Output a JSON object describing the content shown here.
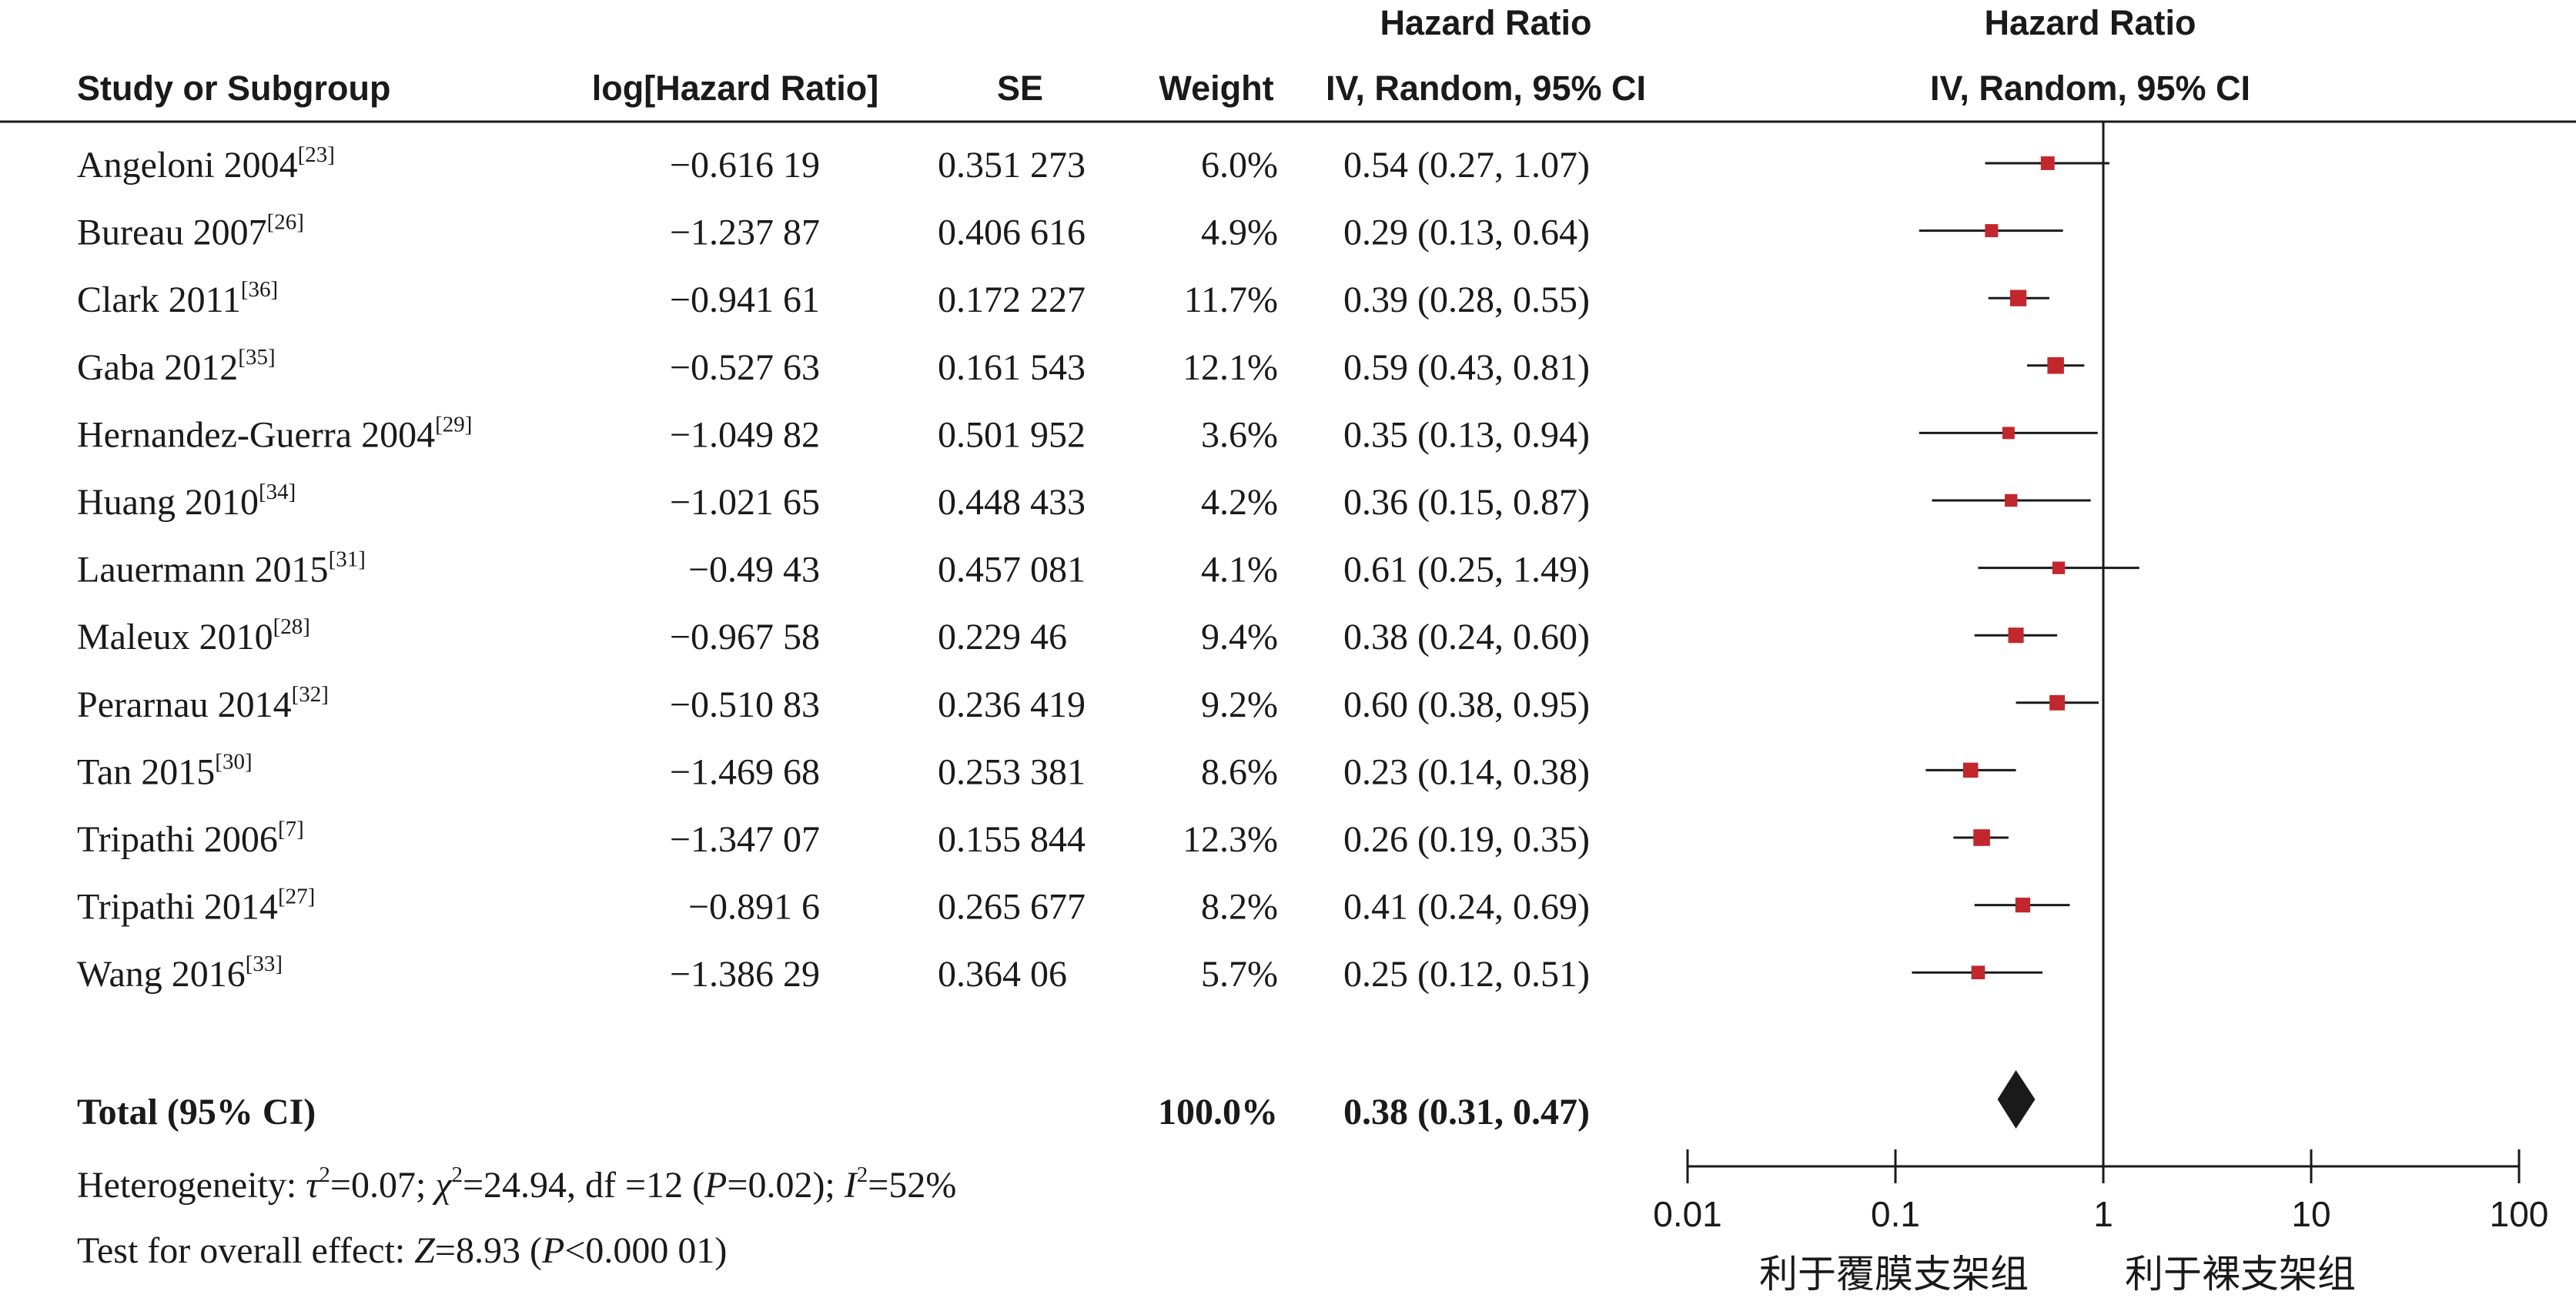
{
  "chart_data": {
    "type": "forest",
    "scale": "log",
    "xlim": [
      0.01,
      100
    ],
    "null_value": 1,
    "x_ticks": [
      "0.01",
      "0.1",
      "1",
      "10",
      "100"
    ],
    "headers": {
      "study": "Study or Subgroup",
      "loghr": "log[Hazard Ratio]",
      "se": "SE",
      "weight": "Weight",
      "hr_title": "Hazard Ratio",
      "hr_method": "IV, Random, 95% CI",
      "plot_title": "Hazard Ratio",
      "plot_method": "IV, Random, 95% CI"
    },
    "studies": [
      {
        "name": "Angeloni 2004",
        "ref": "[23]",
        "loghr": "−0.616 19",
        "se": "0.351 273",
        "weight": "6.0%",
        "ci_text": "0.54 (0.27, 1.07)",
        "hr": 0.54,
        "lo": 0.27,
        "hi": 1.07,
        "w": 6.0
      },
      {
        "name": "Bureau 2007",
        "ref": "[26]",
        "loghr": "−1.237 87",
        "se": "0.406 616",
        "weight": "4.9%",
        "ci_text": "0.29 (0.13, 0.64)",
        "hr": 0.29,
        "lo": 0.13,
        "hi": 0.64,
        "w": 4.9
      },
      {
        "name": "Clark 2011",
        "ref": "[36]",
        "loghr": "−0.941 61",
        "se": "0.172 227",
        "weight": "11.7%",
        "ci_text": "0.39 (0.28, 0.55)",
        "hr": 0.39,
        "lo": 0.28,
        "hi": 0.55,
        "w": 11.7
      },
      {
        "name": "Gaba 2012",
        "ref": "[35]",
        "loghr": "−0.527 63",
        "se": "0.161 543",
        "weight": "12.1%",
        "ci_text": "0.59 (0.43, 0.81)",
        "hr": 0.59,
        "lo": 0.43,
        "hi": 0.81,
        "w": 12.1
      },
      {
        "name": "Hernandez-Guerra 2004",
        "ref": "[29]",
        "loghr": "−1.049 82",
        "se": "0.501 952",
        "weight": "3.6%",
        "ci_text": "0.35 (0.13, 0.94)",
        "hr": 0.35,
        "lo": 0.13,
        "hi": 0.94,
        "w": 3.6
      },
      {
        "name": "Huang 2010",
        "ref": "[34]",
        "loghr": "−1.021 65",
        "se": "0.448 433",
        "weight": "4.2%",
        "ci_text": "0.36 (0.15, 0.87)",
        "hr": 0.36,
        "lo": 0.15,
        "hi": 0.87,
        "w": 4.2
      },
      {
        "name": "Lauermann 2015",
        "ref": "[31]",
        "loghr": "−0.49 43",
        "se": "0.457 081",
        "weight": "4.1%",
        "ci_text": "0.61 (0.25, 1.49)",
        "hr": 0.61,
        "lo": 0.25,
        "hi": 1.49,
        "w": 4.1
      },
      {
        "name": "Maleux 2010",
        "ref": "[28]",
        "loghr": "−0.967 58",
        "se": "0.229 46",
        "weight": "9.4%",
        "ci_text": "0.38 (0.24, 0.60)",
        "hr": 0.38,
        "lo": 0.24,
        "hi": 0.6,
        "w": 9.4
      },
      {
        "name": "Perarnau 2014",
        "ref": "[32]",
        "loghr": "−0.510 83",
        "se": "0.236 419",
        "weight": "9.2%",
        "ci_text": "0.60 (0.38, 0.95)",
        "hr": 0.6,
        "lo": 0.38,
        "hi": 0.95,
        "w": 9.2
      },
      {
        "name": "Tan 2015",
        "ref": "[30]",
        "loghr": "−1.469 68",
        "se": "0.253 381",
        "weight": "8.6%",
        "ci_text": "0.23 (0.14, 0.38)",
        "hr": 0.23,
        "lo": 0.14,
        "hi": 0.38,
        "w": 8.6
      },
      {
        "name": "Tripathi 2006",
        "ref": "[7]",
        "loghr": "−1.347 07",
        "se": "0.155 844",
        "weight": "12.3%",
        "ci_text": "0.26 (0.19, 0.35)",
        "hr": 0.26,
        "lo": 0.19,
        "hi": 0.35,
        "w": 12.3
      },
      {
        "name": "Tripathi 2014",
        "ref": "[27]",
        "loghr": "−0.891 6",
        "se": "0.265 677",
        "weight": "8.2%",
        "ci_text": "0.41 (0.24, 0.69)",
        "hr": 0.41,
        "lo": 0.24,
        "hi": 0.69,
        "w": 8.2
      },
      {
        "name": "Wang 2016",
        "ref": "[33]",
        "loghr": "−1.386 29",
        "se": "0.364 06",
        "weight": "5.7%",
        "ci_text": "0.25 (0.12, 0.51)",
        "hr": 0.25,
        "lo": 0.12,
        "hi": 0.51,
        "w": 5.7
      }
    ],
    "total": {
      "label": "Total (95% CI)",
      "weight": "100.0%",
      "ci_text": "0.38 (0.31, 0.47)",
      "hr": 0.38,
      "lo": 0.31,
      "hi": 0.47
    },
    "heterogeneity": {
      "label": "Heterogeneity: ",
      "tau2_symbol": "τ",
      "tau2_value": "=0.07; ",
      "chi2_symbol": "χ",
      "chi2_value": "=24.94, df =12 (",
      "p_symbol": "P",
      "p_value": "=0.02); ",
      "i2_symbol": "I",
      "i2_value": "=52%",
      "sq": "2"
    },
    "overall": {
      "label": "Test for overall effect: ",
      "z_symbol": "Z",
      "z_value": "=8.93 (",
      "p_symbol": "P",
      "p_value": "<0.000 01)"
    },
    "favours": {
      "left": "利于覆膜支架组",
      "right": "利于裸支架组"
    },
    "colors": {
      "marker": "#c1272d",
      "line": "#1a1a1a",
      "diamond": "#1a1a1a"
    }
  }
}
